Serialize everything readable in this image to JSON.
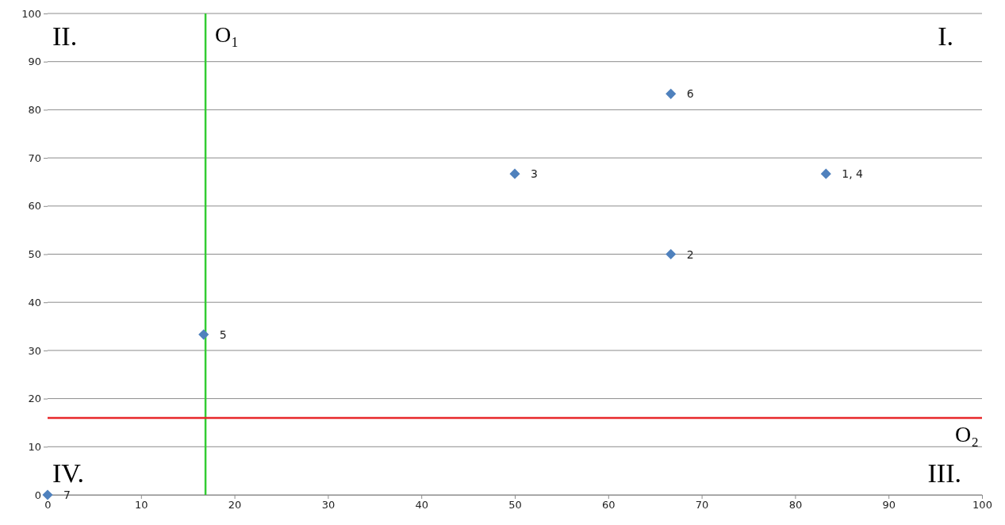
{
  "chart_data": {
    "type": "scatter",
    "x": [
      83.3,
      66.7,
      50,
      16.7,
      66.7,
      0
    ],
    "series": [
      {
        "color": "#4f81bd",
        "values": [
          66.7,
          50,
          66.7,
          33.3,
          83.3,
          0
        ]
      }
    ],
    "marker": "diamond",
    "xlim": [
      0,
      100
    ],
    "ylim": [
      0,
      100
    ],
    "xticks": [
      0,
      10,
      20,
      30,
      40,
      50,
      60,
      70,
      80,
      90,
      100
    ],
    "yticks": [
      0,
      10,
      20,
      30,
      40,
      50,
      60,
      70,
      80,
      90,
      100
    ],
    "grid": "y",
    "ref_lines": [
      {
        "axis": "x",
        "value": 16.9,
        "label": "O₁",
        "color": "#33cc33"
      },
      {
        "axis": "y",
        "value": 16,
        "label": "O₂",
        "color": "#e8282b"
      }
    ],
    "annotations": [
      "II.",
      "I.",
      "IV.",
      "III.",
      {
        "text": "1, 4",
        "x": 83.3,
        "y": 66.7
      },
      {
        "text": "2",
        "x": 66.7,
        "y": 50
      },
      {
        "text": "3",
        "x": 50,
        "y": 66.7
      },
      {
        "text": "5",
        "x": 16.7,
        "y": 33.3
      },
      {
        "text": "6",
        "x": 66.7,
        "y": 83.3
      },
      {
        "text": "7",
        "x": 0,
        "y": 0
      }
    ]
  }
}
